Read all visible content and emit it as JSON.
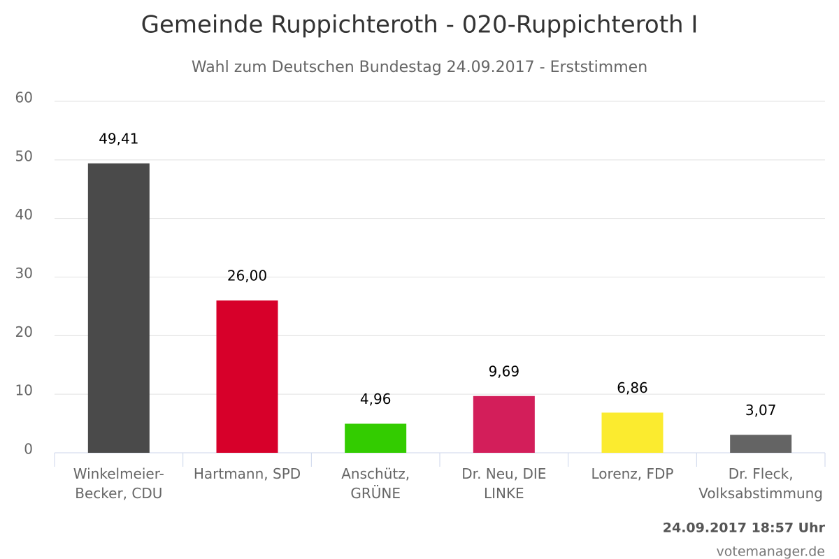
{
  "chart_data": {
    "type": "bar",
    "title": "Gemeinde Ruppichteroth - 020-Ruppichteroth I",
    "subtitle": "Wahl zum Deutschen Bundestag 24.09.2017 - Erststimmen",
    "categories": [
      [
        "Winkelmeier-",
        "Becker, CDU"
      ],
      [
        "Hartmann, SPD"
      ],
      [
        "Anschütz,",
        "GRÜNE"
      ],
      [
        "Dr. Neu, DIE",
        "LINKE"
      ],
      [
        "Lorenz, FDP"
      ],
      [
        "Dr. Fleck,",
        "Volksabstimmung"
      ]
    ],
    "values": [
      49.41,
      26.0,
      4.96,
      9.69,
      6.86,
      3.07
    ],
    "value_labels": [
      "49,41",
      "26,00",
      "4,96",
      "9,69",
      "6,86",
      "3,07"
    ],
    "colors": [
      "#4a4a4a",
      "#d7002a",
      "#33cc00",
      "#d31e5a",
      "#fbeb2f",
      "#646464"
    ],
    "ylim": [
      0,
      60
    ],
    "yticks": [
      0,
      10,
      20,
      30,
      40,
      50,
      60
    ],
    "grid": true,
    "timestamp": "24.09.2017 18:57 Uhr",
    "source": "votemanager.de"
  }
}
